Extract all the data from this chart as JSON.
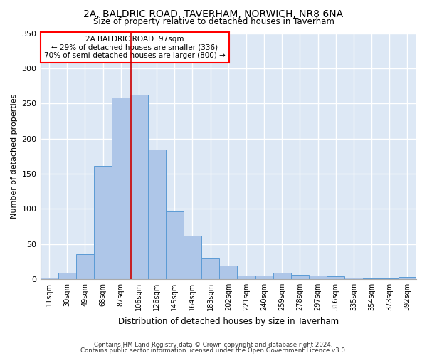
{
  "title1": "2A, BALDRIC ROAD, TAVERHAM, NORWICH, NR8 6NA",
  "title2": "Size of property relative to detached houses in Taverham",
  "xlabel": "Distribution of detached houses by size in Taverham",
  "ylabel": "Number of detached properties",
  "footer1": "Contains HM Land Registry data © Crown copyright and database right 2024.",
  "footer2": "Contains public sector information licensed under the Open Government Licence v3.0.",
  "categories": [
    "11sqm",
    "30sqm",
    "49sqm",
    "68sqm",
    "87sqm",
    "106sqm",
    "126sqm",
    "145sqm",
    "164sqm",
    "183sqm",
    "202sqm",
    "221sqm",
    "240sqm",
    "259sqm",
    "278sqm",
    "297sqm",
    "316sqm",
    "335sqm",
    "354sqm",
    "373sqm",
    "392sqm"
  ],
  "values": [
    2,
    9,
    35,
    161,
    258,
    262,
    184,
    96,
    62,
    29,
    19,
    5,
    5,
    9,
    6,
    5,
    4,
    2,
    1,
    1,
    3
  ],
  "bar_color": "#aec6e8",
  "bar_edge_color": "#5b9bd5",
  "background_color": "#dde8f5",
  "grid_color": "#ffffff",
  "annotation_title": "2A BALDRIC ROAD: 97sqm",
  "annotation_line1": "← 29% of detached houses are smaller (336)",
  "annotation_line2": "70% of semi-detached houses are larger (800) →",
  "vline_x": 4.55,
  "vline_color": "#cc0000",
  "ylim": [
    0,
    350
  ],
  "yticks": [
    0,
    50,
    100,
    150,
    200,
    250,
    300,
    350
  ]
}
